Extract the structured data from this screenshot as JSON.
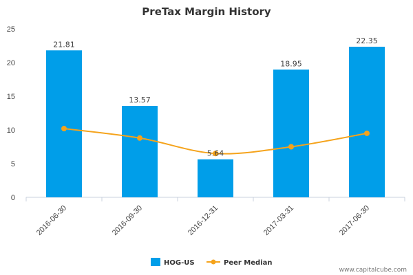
{
  "chart_data": {
    "type": "bar",
    "title": "PreTax Margin History",
    "xlabel": "",
    "ylabel": "",
    "categories": [
      "2016-06-30",
      "2016-09-30",
      "2016-12-31",
      "2017-03-31",
      "2017-06-30"
    ],
    "ylim": [
      0,
      25
    ],
    "yticks": [
      0,
      5,
      10,
      15,
      20,
      25
    ],
    "grid": false,
    "legend_position": "bottom",
    "series": [
      {
        "name": "HOG-US",
        "type": "bar",
        "color": "#009ee9",
        "values": [
          21.81,
          13.57,
          5.64,
          18.95,
          22.35
        ],
        "data_labels": [
          "21.81",
          "13.57",
          "5.64",
          "18.95",
          "22.35"
        ]
      },
      {
        "name": "Peer Median",
        "type": "line",
        "color": "#f5a31b",
        "values": [
          10.2,
          8.8,
          6.5,
          7.5,
          9.5
        ]
      }
    ]
  },
  "watermark": "www.capitalcube.com"
}
